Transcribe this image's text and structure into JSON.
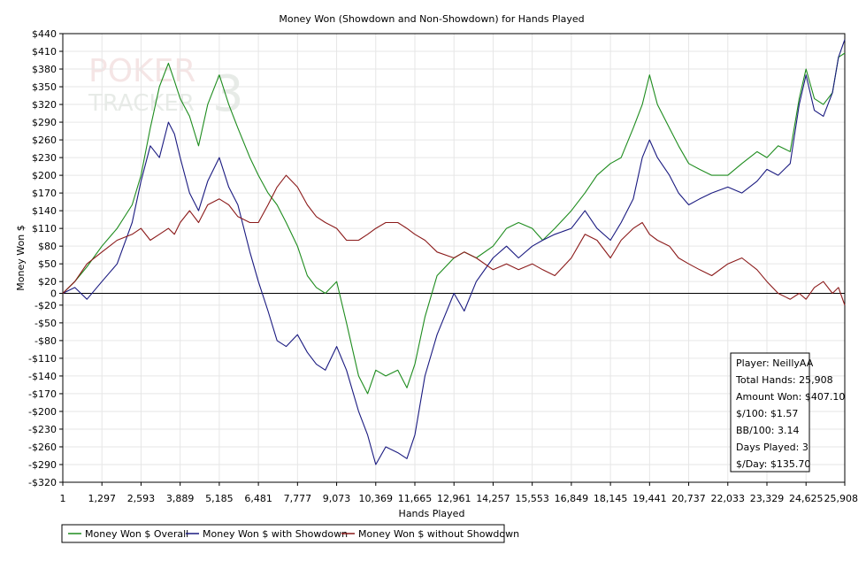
{
  "chart_data": {
    "type": "line",
    "title": "Money Won (Showdown and Non-Showdown) for Hands Played",
    "xlabel": "Hands Played",
    "ylabel": "Money Won $",
    "xlim": [
      1,
      25908
    ],
    "ylim": [
      -320,
      440
    ],
    "x_ticks": [
      1,
      1297,
      2593,
      3889,
      5185,
      6481,
      7777,
      9073,
      10369,
      11665,
      12961,
      14257,
      15553,
      16849,
      18145,
      19441,
      20737,
      22033,
      23329,
      24625,
      25908
    ],
    "x_tick_labels": [
      "1",
      "1,297",
      "2,593",
      "3,889",
      "5,185",
      "6,481",
      "7,777",
      "9,073",
      "10,369",
      "11,665",
      "12,961",
      "14,257",
      "15,553",
      "16,849",
      "18,145",
      "19,441",
      "20,737",
      "22,033",
      "23,329",
      "24,625",
      "25,908"
    ],
    "y_ticks": [
      440,
      410,
      380,
      350,
      320,
      290,
      260,
      230,
      200,
      170,
      140,
      110,
      80,
      50,
      20,
      0,
      -20,
      -50,
      -80,
      -110,
      -140,
      -170,
      -200,
      -230,
      -260,
      -290,
      -320
    ],
    "y_tick_labels": [
      "$440",
      "$410",
      "$380",
      "$350",
      "$320",
      "$290",
      "$260",
      "$230",
      "$200",
      "$170",
      "$140",
      "$110",
      "$80",
      "$50",
      "$20",
      "0",
      "-$20",
      "-$50",
      "-$80",
      "-$110",
      "-$140",
      "-$170",
      "-$200",
      "-$230",
      "-$260",
      "-$290",
      "-$320"
    ],
    "grid": true,
    "legend_position": "bottom-left",
    "series": [
      {
        "name": "Money Won $ Overall",
        "color": "#1e8c1e",
        "points": [
          [
            1,
            0
          ],
          [
            400,
            20
          ],
          [
            800,
            45
          ],
          [
            1297,
            80
          ],
          [
            1800,
            110
          ],
          [
            2300,
            150
          ],
          [
            2593,
            200
          ],
          [
            2900,
            280
          ],
          [
            3200,
            350
          ],
          [
            3500,
            390
          ],
          [
            3700,
            360
          ],
          [
            3889,
            330
          ],
          [
            4200,
            300
          ],
          [
            4500,
            250
          ],
          [
            4800,
            320
          ],
          [
            5185,
            370
          ],
          [
            5500,
            320
          ],
          [
            5800,
            280
          ],
          [
            6200,
            230
          ],
          [
            6481,
            200
          ],
          [
            6800,
            170
          ],
          [
            7100,
            150
          ],
          [
            7400,
            120
          ],
          [
            7777,
            80
          ],
          [
            8100,
            30
          ],
          [
            8400,
            10
          ],
          [
            8700,
            0
          ],
          [
            9073,
            20
          ],
          [
            9400,
            -50
          ],
          [
            9800,
            -140
          ],
          [
            10100,
            -170
          ],
          [
            10369,
            -130
          ],
          [
            10700,
            -140
          ],
          [
            11100,
            -130
          ],
          [
            11400,
            -160
          ],
          [
            11665,
            -120
          ],
          [
            12000,
            -40
          ],
          [
            12400,
            30
          ],
          [
            12961,
            60
          ],
          [
            13300,
            70
          ],
          [
            13700,
            60
          ],
          [
            14257,
            80
          ],
          [
            14700,
            110
          ],
          [
            15100,
            120
          ],
          [
            15553,
            110
          ],
          [
            15900,
            90
          ],
          [
            16300,
            110
          ],
          [
            16849,
            140
          ],
          [
            17300,
            170
          ],
          [
            17700,
            200
          ],
          [
            18145,
            220
          ],
          [
            18500,
            230
          ],
          [
            18900,
            280
          ],
          [
            19200,
            320
          ],
          [
            19441,
            370
          ],
          [
            19700,
            320
          ],
          [
            20100,
            280
          ],
          [
            20400,
            250
          ],
          [
            20737,
            220
          ],
          [
            21100,
            210
          ],
          [
            21500,
            200
          ],
          [
            22033,
            200
          ],
          [
            22500,
            220
          ],
          [
            23000,
            240
          ],
          [
            23329,
            230
          ],
          [
            23700,
            250
          ],
          [
            24100,
            240
          ],
          [
            24400,
            330
          ],
          [
            24625,
            380
          ],
          [
            24900,
            330
          ],
          [
            25200,
            320
          ],
          [
            25500,
            340
          ],
          [
            25700,
            400
          ],
          [
            25908,
            407
          ]
        ]
      },
      {
        "name": "Money Won $ with Showdown",
        "color": "#1a1a80",
        "points": [
          [
            1,
            0
          ],
          [
            400,
            10
          ],
          [
            800,
            -10
          ],
          [
            1297,
            20
          ],
          [
            1800,
            50
          ],
          [
            2300,
            120
          ],
          [
            2593,
            190
          ],
          [
            2900,
            250
          ],
          [
            3200,
            230
          ],
          [
            3500,
            290
          ],
          [
            3700,
            270
          ],
          [
            3889,
            230
          ],
          [
            4200,
            170
          ],
          [
            4500,
            140
          ],
          [
            4800,
            190
          ],
          [
            5185,
            230
          ],
          [
            5500,
            180
          ],
          [
            5800,
            150
          ],
          [
            6200,
            70
          ],
          [
            6481,
            20
          ],
          [
            6800,
            -30
          ],
          [
            7100,
            -80
          ],
          [
            7400,
            -90
          ],
          [
            7777,
            -70
          ],
          [
            8100,
            -100
          ],
          [
            8400,
            -120
          ],
          [
            8700,
            -130
          ],
          [
            9073,
            -90
          ],
          [
            9400,
            -130
          ],
          [
            9800,
            -200
          ],
          [
            10100,
            -240
          ],
          [
            10369,
            -290
          ],
          [
            10700,
            -260
          ],
          [
            11100,
            -270
          ],
          [
            11400,
            -280
          ],
          [
            11665,
            -240
          ],
          [
            12000,
            -140
          ],
          [
            12400,
            -70
          ],
          [
            12961,
            0
          ],
          [
            13300,
            -30
          ],
          [
            13700,
            20
          ],
          [
            14257,
            60
          ],
          [
            14700,
            80
          ],
          [
            15100,
            60
          ],
          [
            15553,
            80
          ],
          [
            15900,
            90
          ],
          [
            16300,
            100
          ],
          [
            16849,
            110
          ],
          [
            17300,
            140
          ],
          [
            17700,
            110
          ],
          [
            18145,
            90
          ],
          [
            18500,
            120
          ],
          [
            18900,
            160
          ],
          [
            19200,
            230
          ],
          [
            19441,
            260
          ],
          [
            19700,
            230
          ],
          [
            20100,
            200
          ],
          [
            20400,
            170
          ],
          [
            20737,
            150
          ],
          [
            21100,
            160
          ],
          [
            21500,
            170
          ],
          [
            22033,
            180
          ],
          [
            22500,
            170
          ],
          [
            23000,
            190
          ],
          [
            23329,
            210
          ],
          [
            23700,
            200
          ],
          [
            24100,
            220
          ],
          [
            24400,
            320
          ],
          [
            24625,
            370
          ],
          [
            24900,
            310
          ],
          [
            25200,
            300
          ],
          [
            25500,
            340
          ],
          [
            25700,
            400
          ],
          [
            25908,
            430
          ]
        ]
      },
      {
        "name": "Money Won $ without Showdown",
        "color": "#8b1a1a",
        "points": [
          [
            1,
            0
          ],
          [
            400,
            20
          ],
          [
            800,
            50
          ],
          [
            1297,
            70
          ],
          [
            1800,
            90
          ],
          [
            2300,
            100
          ],
          [
            2593,
            110
          ],
          [
            2900,
            90
          ],
          [
            3200,
            100
          ],
          [
            3500,
            110
          ],
          [
            3700,
            100
          ],
          [
            3889,
            120
          ],
          [
            4200,
            140
          ],
          [
            4500,
            120
          ],
          [
            4800,
            150
          ],
          [
            5185,
            160
          ],
          [
            5500,
            150
          ],
          [
            5800,
            130
          ],
          [
            6200,
            120
          ],
          [
            6481,
            120
          ],
          [
            6800,
            150
          ],
          [
            7100,
            180
          ],
          [
            7400,
            200
          ],
          [
            7777,
            180
          ],
          [
            8100,
            150
          ],
          [
            8400,
            130
          ],
          [
            8700,
            120
          ],
          [
            9073,
            110
          ],
          [
            9400,
            90
          ],
          [
            9800,
            90
          ],
          [
            10100,
            100
          ],
          [
            10369,
            110
          ],
          [
            10700,
            120
          ],
          [
            11100,
            120
          ],
          [
            11400,
            110
          ],
          [
            11665,
            100
          ],
          [
            12000,
            90
          ],
          [
            12400,
            70
          ],
          [
            12961,
            60
          ],
          [
            13300,
            70
          ],
          [
            13700,
            60
          ],
          [
            14257,
            40
          ],
          [
            14700,
            50
          ],
          [
            15100,
            40
          ],
          [
            15553,
            50
          ],
          [
            15900,
            40
          ],
          [
            16300,
            30
          ],
          [
            16849,
            60
          ],
          [
            17300,
            100
          ],
          [
            17700,
            90
          ],
          [
            18145,
            60
          ],
          [
            18500,
            90
          ],
          [
            18900,
            110
          ],
          [
            19200,
            120
          ],
          [
            19441,
            100
          ],
          [
            19700,
            90
          ],
          [
            20100,
            80
          ],
          [
            20400,
            60
          ],
          [
            20737,
            50
          ],
          [
            21100,
            40
          ],
          [
            21500,
            30
          ],
          [
            22033,
            50
          ],
          [
            22500,
            60
          ],
          [
            23000,
            40
          ],
          [
            23329,
            20
          ],
          [
            23700,
            0
          ],
          [
            24100,
            -10
          ],
          [
            24400,
            0
          ],
          [
            24625,
            -10
          ],
          [
            24900,
            10
          ],
          [
            25200,
            20
          ],
          [
            25500,
            0
          ],
          [
            25700,
            10
          ],
          [
            25908,
            -20
          ]
        ]
      }
    ],
    "stats_box": {
      "player": "Player: NeillyAA",
      "total_hands": "Total Hands: 25,908",
      "amount_won": "Amount Won: $407.10",
      "per_100": "$/100: $1.57",
      "bb_per_100": "BB/100: 3.14",
      "days_played": "Days Played: 3",
      "per_day": "$/Day: $135.70"
    }
  },
  "watermark": {
    "line1": "POKER",
    "line2": "TRACKER",
    "mark": "3"
  }
}
